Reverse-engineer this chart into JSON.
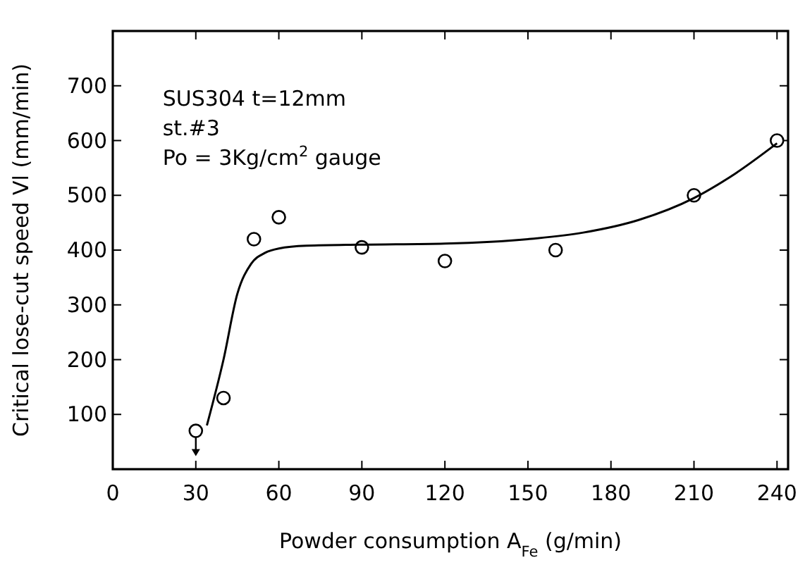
{
  "chart_data": {
    "type": "scatter",
    "xlabel": "Powder consumption A$_{Fe}$ (g/min)",
    "ylabel": "Critical lose-cut speed Vl (mm/min)",
    "annotations": [
      "SUS304  t=12mm",
      "st.#3",
      "Po = 3Kg/cm$^{2}$ gauge"
    ],
    "xlim": [
      0,
      244
    ],
    "xticks": [
      0,
      30,
      60,
      90,
      120,
      150,
      180,
      210,
      240
    ],
    "ylim": [
      0,
      800
    ],
    "yticks": [
      100,
      200,
      300,
      400,
      500,
      600,
      700
    ],
    "grid": false,
    "marker": "circle",
    "series": [
      {
        "color": "#000000",
        "x": [
          30,
          40,
          51,
          60,
          90,
          120,
          160,
          210,
          240
        ],
        "values": [
          70,
          130,
          420,
          460,
          405,
          380,
          400,
          500,
          600
        ]
      },
      {
        "type": "line",
        "color": "#000000",
        "marker": "none",
        "line_style": "solid",
        "x": [
          34,
          40,
          45,
          50,
          55,
          60,
          70,
          90,
          120,
          150,
          170,
          190,
          210,
          225,
          240
        ],
        "values": [
          80,
          200,
          320,
          375,
          395,
          403,
          408,
          410,
          412,
          420,
          432,
          455,
          495,
          540,
          595
        ]
      }
    ]
  }
}
